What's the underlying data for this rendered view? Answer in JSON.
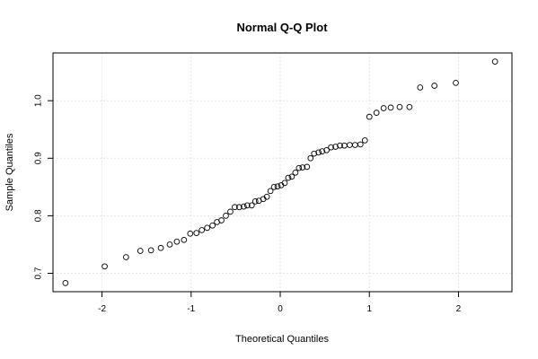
{
  "chart_data": {
    "type": "scatter",
    "title": "Normal Q-Q Plot",
    "xlabel": "Theoretical Quantiles",
    "ylabel": "Sample Quantiles",
    "xlim": [
      -2.55,
      2.6
    ],
    "ylim": [
      0.668,
      1.083
    ],
    "xticks": [
      -2,
      -1,
      0,
      1,
      2
    ],
    "xtick_labels": [
      "-2",
      "-1",
      "0",
      "1",
      "2"
    ],
    "yticks": [
      0.7,
      0.8,
      0.9,
      1.0
    ],
    "ytick_labels": [
      "0.7",
      "0.8",
      "0.9",
      "1.0"
    ],
    "grid": true,
    "points": [
      {
        "x": -2.41,
        "y": 0.683
      },
      {
        "x": -1.97,
        "y": 0.712
      },
      {
        "x": -1.73,
        "y": 0.728
      },
      {
        "x": -1.57,
        "y": 0.739
      },
      {
        "x": -1.45,
        "y": 0.74
      },
      {
        "x": -1.34,
        "y": 0.744
      },
      {
        "x": -1.24,
        "y": 0.75
      },
      {
        "x": -1.16,
        "y": 0.755
      },
      {
        "x": -1.08,
        "y": 0.758
      },
      {
        "x": -1.01,
        "y": 0.769
      },
      {
        "x": -0.94,
        "y": 0.77
      },
      {
        "x": -0.88,
        "y": 0.775
      },
      {
        "x": -0.82,
        "y": 0.779
      },
      {
        "x": -0.76,
        "y": 0.783
      },
      {
        "x": -0.71,
        "y": 0.789
      },
      {
        "x": -0.66,
        "y": 0.792
      },
      {
        "x": -0.61,
        "y": 0.8
      },
      {
        "x": -0.56,
        "y": 0.807
      },
      {
        "x": -0.51,
        "y": 0.815
      },
      {
        "x": -0.46,
        "y": 0.815
      },
      {
        "x": -0.41,
        "y": 0.816
      },
      {
        "x": -0.37,
        "y": 0.818
      },
      {
        "x": -0.32,
        "y": 0.818
      },
      {
        "x": -0.28,
        "y": 0.825
      },
      {
        "x": -0.24,
        "y": 0.826
      },
      {
        "x": -0.19,
        "y": 0.829
      },
      {
        "x": -0.15,
        "y": 0.833
      },
      {
        "x": -0.11,
        "y": 0.843
      },
      {
        "x": -0.07,
        "y": 0.85
      },
      {
        "x": -0.03,
        "y": 0.851
      },
      {
        "x": 0.01,
        "y": 0.853
      },
      {
        "x": 0.05,
        "y": 0.857
      },
      {
        "x": 0.09,
        "y": 0.866
      },
      {
        "x": 0.13,
        "y": 0.868
      },
      {
        "x": 0.17,
        "y": 0.875
      },
      {
        "x": 0.21,
        "y": 0.883
      },
      {
        "x": 0.25,
        "y": 0.884
      },
      {
        "x": 0.3,
        "y": 0.885
      },
      {
        "x": 0.34,
        "y": 0.9
      },
      {
        "x": 0.38,
        "y": 0.908
      },
      {
        "x": 0.43,
        "y": 0.91
      },
      {
        "x": 0.47,
        "y": 0.912
      },
      {
        "x": 0.52,
        "y": 0.914
      },
      {
        "x": 0.57,
        "y": 0.919
      },
      {
        "x": 0.62,
        "y": 0.92
      },
      {
        "x": 0.67,
        "y": 0.922
      },
      {
        "x": 0.72,
        "y": 0.922
      },
      {
        "x": 0.78,
        "y": 0.923
      },
      {
        "x": 0.84,
        "y": 0.923
      },
      {
        "x": 0.9,
        "y": 0.924
      },
      {
        "x": 0.95,
        "y": 0.931
      },
      {
        "x": 1.0,
        "y": 0.972
      },
      {
        "x": 1.08,
        "y": 0.979
      },
      {
        "x": 1.16,
        "y": 0.987
      },
      {
        "x": 1.24,
        "y": 0.988
      },
      {
        "x": 1.34,
        "y": 0.989
      },
      {
        "x": 1.45,
        "y": 0.989
      },
      {
        "x": 1.57,
        "y": 1.023
      },
      {
        "x": 1.73,
        "y": 1.026
      },
      {
        "x": 1.97,
        "y": 1.031
      },
      {
        "x": 2.41,
        "y": 1.068
      }
    ]
  }
}
